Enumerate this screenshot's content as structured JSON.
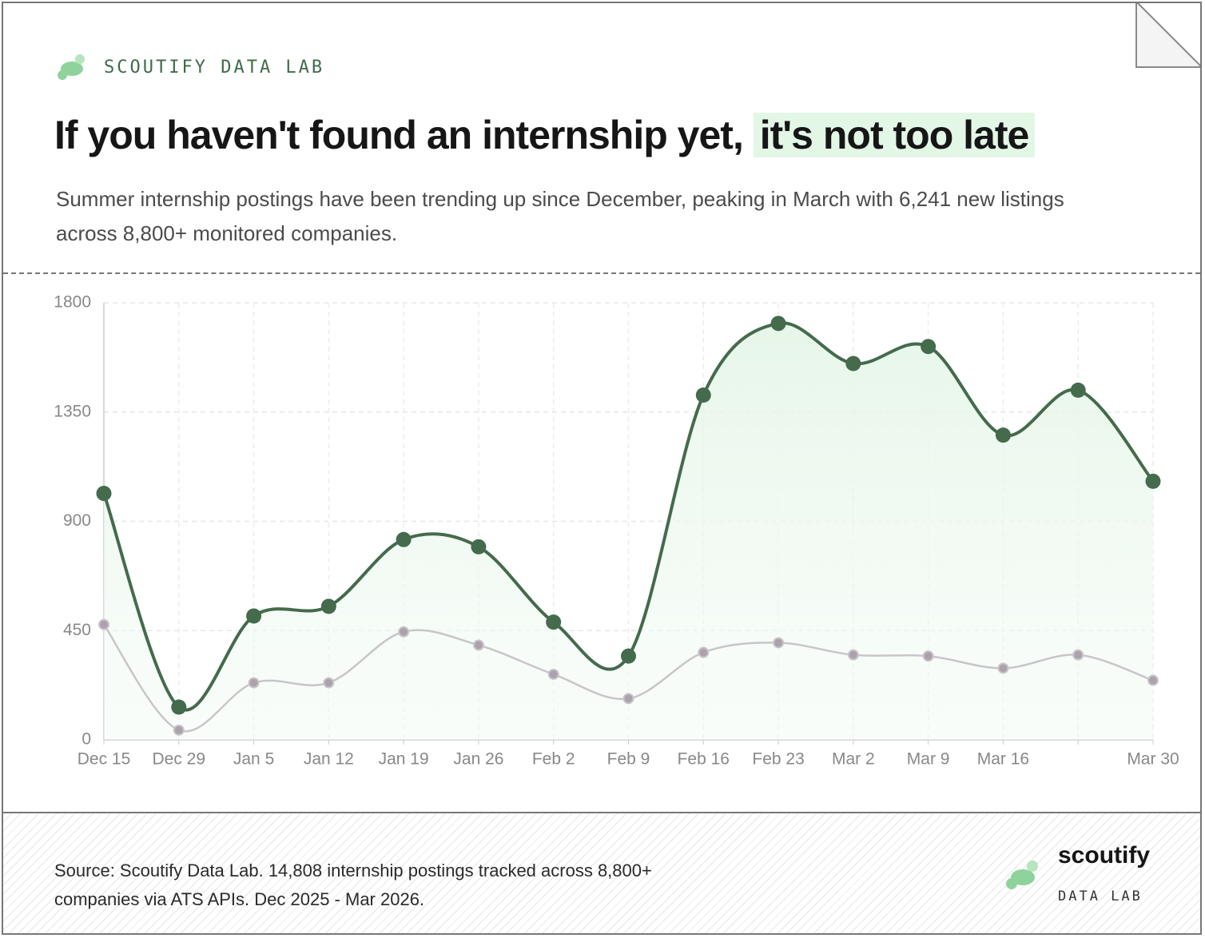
{
  "header": {
    "brand": "SCOUTIFY DATA LAB",
    "title": "If you haven't found an internship yet,",
    "title_highlight": "it's not too late",
    "subtitle": "Summer internship postings have been trending up since December, peaking in March with 6,241 new listings across 8,800+ monitored companies."
  },
  "chart_data": {
    "type": "line",
    "categories": [
      "Dec 15",
      "Dec 29",
      "Jan 5",
      "Jan 12",
      "Jan 19",
      "Jan 26",
      "Feb 2",
      "Feb 9",
      "Feb 16",
      "Feb 23",
      "Mar 2",
      "Mar 9",
      "Mar 16",
      null,
      "Mar 30"
    ],
    "series": [
      {
        "color": "#446b4c",
        "values": [
          1015,
          135,
          510,
          550,
          825,
          795,
          485,
          345,
          1420,
          1715,
          1550,
          1620,
          1255,
          1440,
          1065
        ]
      },
      {
        "color": "#c9c5c9",
        "values": [
          475,
          40,
          235,
          235,
          445,
          390,
          270,
          170,
          360,
          400,
          350,
          345,
          295,
          350,
          245
        ]
      }
    ],
    "ylim": [
      0,
      1800
    ],
    "yticks": [
      0,
      450,
      900,
      1350,
      1800
    ],
    "grid": true
  },
  "footer": {
    "source": "Source: Scoutify Data Lab. 14,808 internship postings tracked across 8,800+ companies via ATS APIs. Dec 2025 - Mar 2026.",
    "logo": "scoutify",
    "logo_sub": "DATA LAB"
  }
}
